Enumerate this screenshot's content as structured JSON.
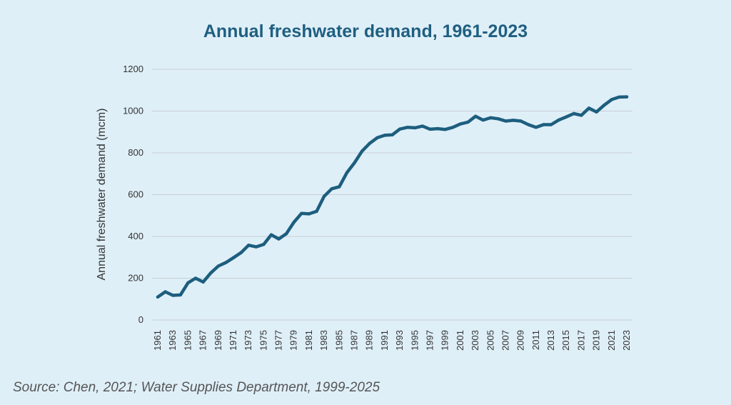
{
  "colors": {
    "background": "#dfeff8",
    "title": "#1f5f80",
    "line": "#1d5e7e",
    "grid": "#c8ced3",
    "text": "#333333",
    "source": "#555555"
  },
  "source_note": "Source: Chen, 2021; Water Supplies Department, 1999-2025",
  "chart_data": {
    "type": "line",
    "title": "Annual freshwater demand, 1961-2023",
    "xlabel": "",
    "ylabel": "Annual freshwater demand (mcm)",
    "ylim": [
      0,
      1200
    ],
    "yticks": [
      "0",
      "200",
      "400",
      "600",
      "800",
      "1000",
      "1200"
    ],
    "xtick_labels": [
      "1961",
      "1963",
      "1965",
      "1967",
      "1969",
      "1971",
      "1973",
      "1975",
      "1977",
      "1979",
      "1981",
      "1983",
      "1985",
      "1987",
      "1989",
      "1991",
      "1993",
      "1995",
      "1997",
      "1999",
      "2001",
      "2003",
      "2005",
      "2007",
      "2009",
      "2011",
      "2013",
      "2015",
      "2017",
      "2019",
      "2021",
      "2023"
    ],
    "grid": true,
    "legend": "none",
    "series": [
      {
        "x": [
          1961,
          1962,
          1963,
          1964,
          1965,
          1966,
          1967,
          1968,
          1969,
          1970,
          1971,
          1972,
          1973,
          1974,
          1975,
          1976,
          1977,
          1978,
          1979,
          1980,
          1981,
          1982,
          1983,
          1984,
          1985,
          1986,
          1987,
          1988,
          1989,
          1990,
          1991,
          1992,
          1993,
          1994,
          1995,
          1996,
          1997,
          1998,
          1999,
          2000,
          2001,
          2002,
          2003,
          2004,
          2005,
          2006,
          2007,
          2008,
          2009,
          2010,
          2011,
          2012,
          2013,
          2014,
          2015,
          2016,
          2017,
          2018,
          2019,
          2020,
          2021,
          2022,
          2023
        ],
        "values": [
          110,
          135,
          118,
          120,
          178,
          200,
          182,
          225,
          258,
          275,
          298,
          322,
          358,
          350,
          362,
          408,
          388,
          413,
          468,
          510,
          508,
          520,
          592,
          628,
          638,
          705,
          752,
          808,
          845,
          872,
          884,
          886,
          914,
          922,
          920,
          928,
          913,
          916,
          912,
          922,
          938,
          947,
          975,
          957,
          968,
          963,
          952,
          956,
          952,
          935,
          922,
          935,
          935,
          957,
          972,
          988,
          980,
          1014,
          996,
          1028,
          1055,
          1067,
          1068
        ]
      }
    ]
  }
}
